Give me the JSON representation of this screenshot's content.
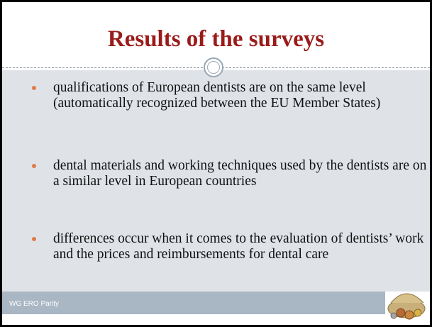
{
  "header": {
    "title": "Results of the surveys"
  },
  "bullets": [
    "qualifications of European dentists are on the same level (automatically recognized between the EU Member States)",
    "dental materials and working techniques used by the dentists are on a similar level in European countries",
    "differences occur when it comes to the evaluation of dentists’ work and the prices and reimbursements for dental care"
  ],
  "footer": {
    "text": "WG ERO Parity"
  }
}
